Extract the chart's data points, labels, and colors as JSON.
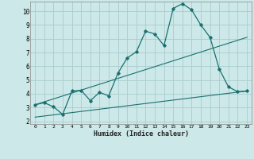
{
  "title": "",
  "xlabel": "Humidex (Indice chaleur)",
  "bg_color": "#cce8e8",
  "grid_color": "#aacccc",
  "line_color": "#1a7070",
  "xlim": [
    -0.5,
    23.5
  ],
  "ylim": [
    1.8,
    10.7
  ],
  "xticks": [
    0,
    1,
    2,
    3,
    4,
    5,
    6,
    7,
    8,
    9,
    10,
    11,
    12,
    13,
    14,
    15,
    16,
    17,
    18,
    19,
    20,
    21,
    22,
    23
  ],
  "yticks": [
    2,
    3,
    4,
    5,
    6,
    7,
    8,
    9,
    10
  ],
  "line1_x": [
    0,
    1,
    2,
    3,
    4,
    5,
    6,
    7,
    8,
    9,
    10,
    11,
    12,
    13,
    14,
    15,
    16,
    17,
    18,
    19,
    20,
    21,
    22,
    23
  ],
  "line1_y": [
    3.2,
    3.35,
    3.05,
    2.5,
    4.2,
    4.25,
    3.5,
    4.1,
    3.85,
    5.5,
    6.6,
    7.05,
    8.55,
    8.35,
    7.5,
    10.2,
    10.55,
    10.1,
    9.0,
    8.1,
    5.8,
    4.5,
    4.15,
    4.2
  ],
  "line2_x": [
    0,
    23
  ],
  "line2_y": [
    3.2,
    8.1
  ],
  "line3_x": [
    0,
    23
  ],
  "line3_y": [
    2.3,
    4.2
  ]
}
